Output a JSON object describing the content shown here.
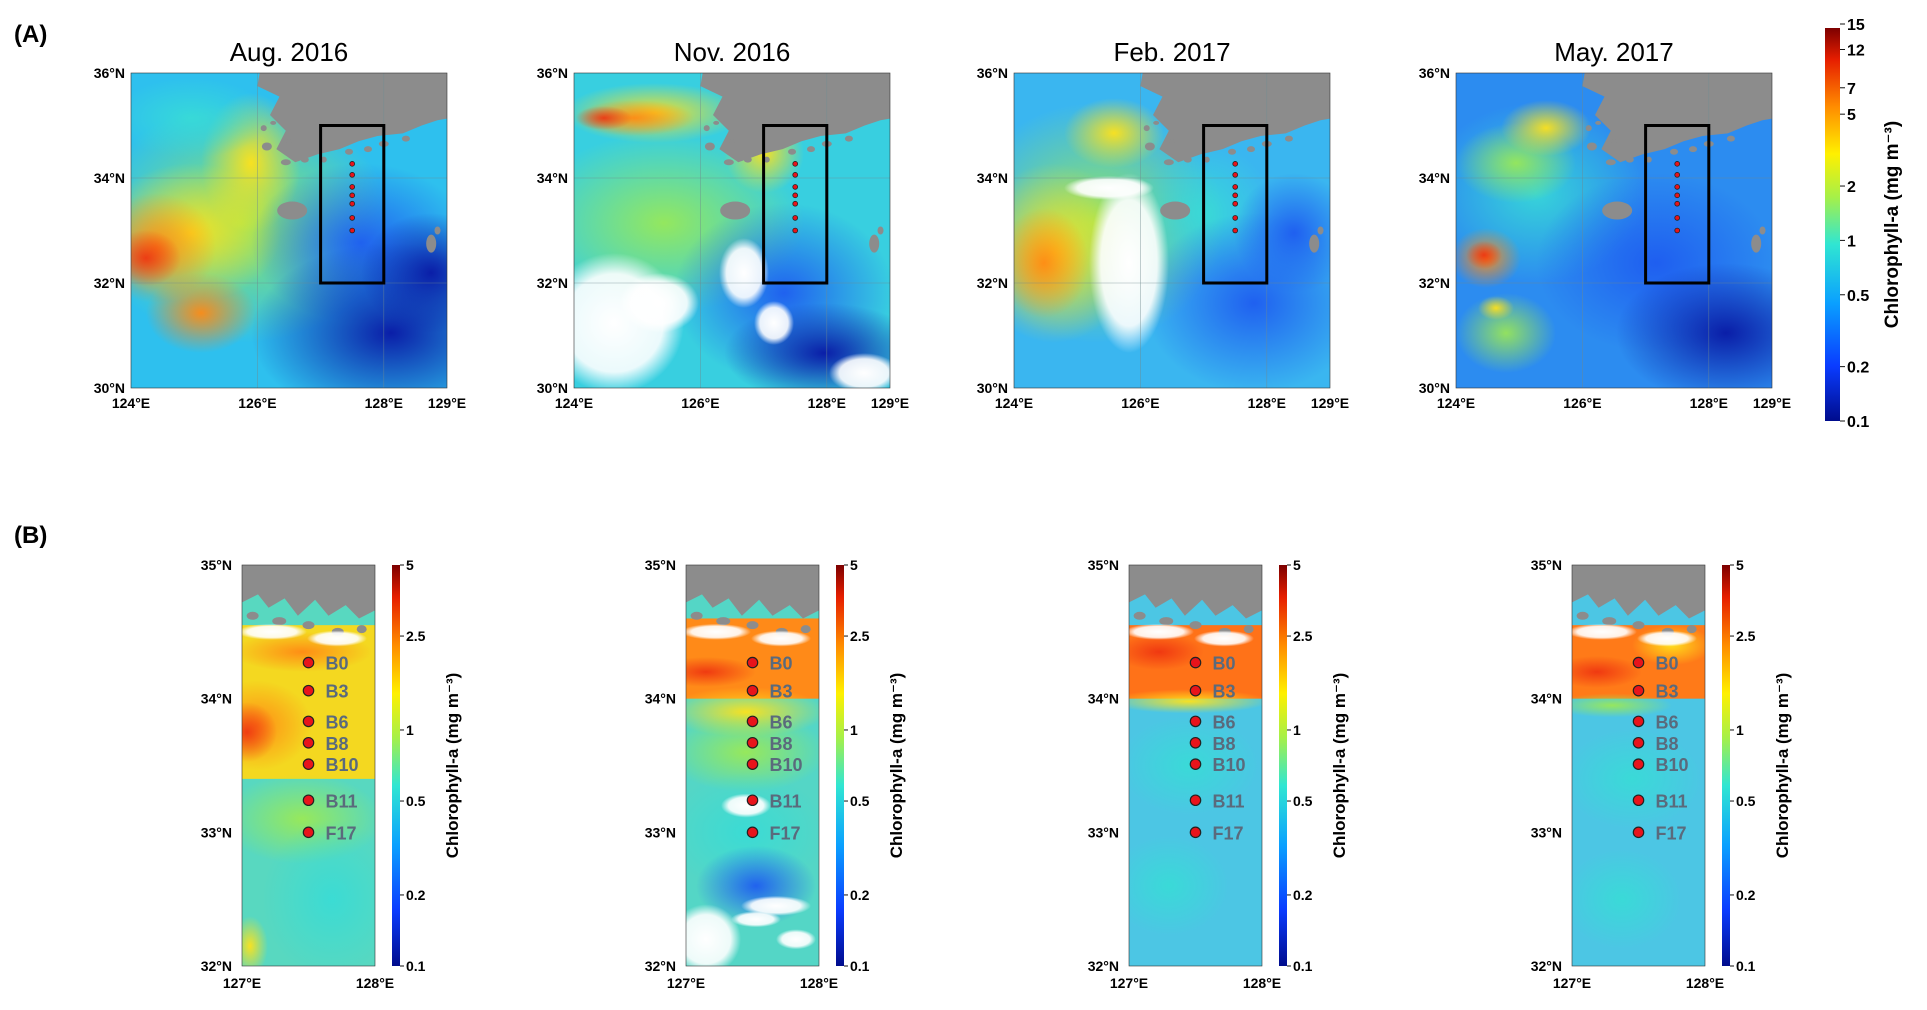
{
  "panels": {
    "a_label": "(A)",
    "b_label": "(B)"
  },
  "months": [
    {
      "title": "Aug. 2016",
      "scheme": "aug",
      "b_scheme": "aug"
    },
    {
      "title": "Nov. 2016",
      "scheme": "nov",
      "b_scheme": "nov"
    },
    {
      "title": "Feb. 2017",
      "scheme": "feb",
      "b_scheme": "feb"
    },
    {
      "title": "May. 2017",
      "scheme": "may",
      "b_scheme": "may"
    }
  ],
  "map_a": {
    "lat_ticks": [
      "36°N",
      "34°N",
      "32°N",
      "30°N"
    ],
    "lon_ticks": [
      "124°E",
      "126°E",
      "128°E",
      "129°E"
    ],
    "lon_range": [
      124,
      129
    ],
    "lat_range": [
      30,
      36
    ],
    "station_box": {
      "lon": [
        127,
        128
      ],
      "lat": [
        32,
        35
      ]
    }
  },
  "map_b": {
    "lat_ticks": [
      "35°N",
      "34°N",
      "33°N",
      "32°N"
    ],
    "lon_ticks": [
      "127°E",
      "128°E"
    ],
    "lon_range": [
      127,
      128
    ],
    "lat_range": [
      32,
      35
    ]
  },
  "stations": [
    {
      "name": "B0",
      "lon": 127.5,
      "lat": 34.27
    },
    {
      "name": "B3",
      "lon": 127.5,
      "lat": 34.06
    },
    {
      "name": "B6",
      "lon": 127.5,
      "lat": 33.83
    },
    {
      "name": "B8",
      "lon": 127.5,
      "lat": 33.67
    },
    {
      "name": "B10",
      "lon": 127.5,
      "lat": 33.51
    },
    {
      "name": "B11",
      "lon": 127.5,
      "lat": 33.24
    },
    {
      "name": "F17",
      "lon": 127.5,
      "lat": 33.0
    }
  ],
  "colorbar_a": {
    "label": "Chlorophyll-a  (mg m⁻³)",
    "min": 0.1,
    "max": 15,
    "scale": "log",
    "ticks": [
      "15",
      "12",
      "7",
      "5",
      "2",
      "1",
      "0.5",
      "0.2",
      "0.1"
    ]
  },
  "colorbar_b": {
    "label": "Chlorophyll-a  (mg m⁻³)",
    "min": 0.1,
    "max": 5,
    "scale": "log",
    "ticks": [
      "5",
      "2.5",
      "1",
      "0.5",
      "0.2",
      "0.1"
    ]
  },
  "colors": {
    "land": "#8c8c8c",
    "station_fill": "#e8141b",
    "station_label": "#5a6a7c",
    "box": "#000000"
  }
}
